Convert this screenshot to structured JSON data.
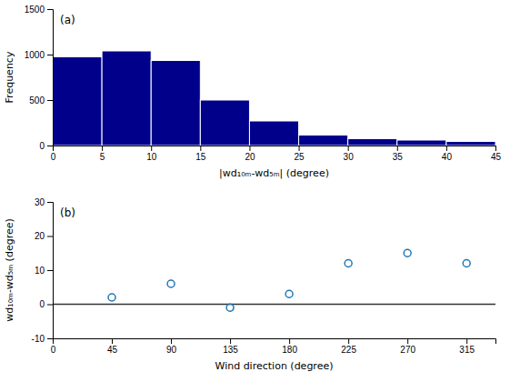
{
  "chart_data": [
    {
      "type": "histogram",
      "bins": [
        0,
        5,
        10,
        15,
        20,
        25,
        30,
        35,
        40,
        45
      ],
      "values": [
        975,
        1040,
        935,
        500,
        270,
        115,
        75,
        60,
        45
      ],
      "color": "#00008B",
      "xlabel": "|wd₁₀ₘ-wd₅ₘ| (degree)",
      "ylabel": "Frequency",
      "xlim": [
        0,
        45
      ],
      "ylim": [
        0,
        1500
      ],
      "xticks": [
        0,
        5,
        10,
        15,
        20,
        25,
        30,
        35,
        40,
        45
      ],
      "yticks": [
        0,
        500,
        1000,
        1500
      ],
      "grid": false,
      "annotations": [
        "(a)"
      ]
    },
    {
      "type": "scatter",
      "x": [
        45,
        90,
        135,
        180,
        225,
        270,
        315
      ],
      "values": [
        2,
        6,
        -1,
        3,
        12,
        15,
        12
      ],
      "marker": "circle",
      "hlines": [
        0
      ],
      "xlabel": "Wind direction (degree)",
      "ylabel": "wd₁₀ₘ-wd₅ₘ (degree)",
      "xlim": [
        0,
        337
      ],
      "ylim": [
        -10,
        30
      ],
      "xticks": [
        0,
        45,
        90,
        135,
        180,
        225,
        270,
        315
      ],
      "yticks": [
        -10,
        0,
        10,
        20,
        30
      ],
      "grid": false,
      "annotations": [
        "(b)"
      ]
    }
  ]
}
